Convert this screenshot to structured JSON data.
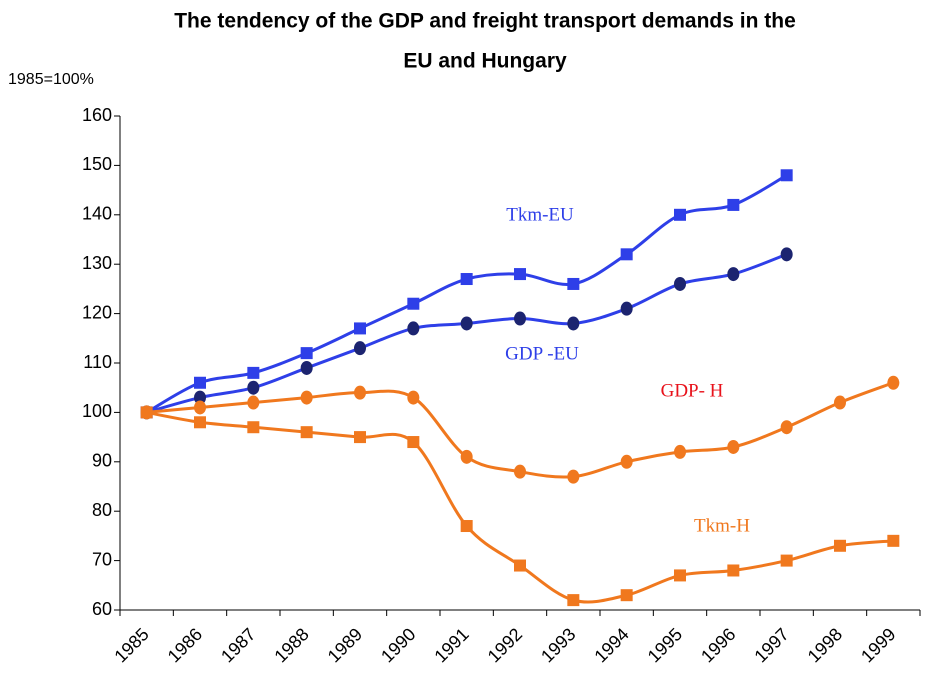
{
  "chart_data": {
    "type": "line",
    "title": [
      "The tendency of the GDP and freight transport demands in the",
      "EU and Hungary"
    ],
    "y_label": "1985=100%",
    "categories": [
      "1985",
      "1986",
      "1987",
      "1988",
      "1989",
      "1990",
      "1991",
      "1992",
      "1993",
      "1994",
      "1995",
      "1996",
      "1997",
      "1998",
      "1999"
    ],
    "ylim": [
      60,
      160
    ],
    "yticks": [
      60,
      70,
      80,
      90,
      100,
      110,
      120,
      130,
      140,
      150,
      160
    ],
    "grid": false,
    "series": [
      {
        "name": "Tkm-EU",
        "color": "#2e3fe8",
        "marker": "square",
        "marker_color": "#2e3fe8",
        "label_color": "#2e3fe8",
        "values": [
          100,
          106,
          108,
          112,
          117,
          122,
          127,
          128,
          126,
          132,
          140,
          142,
          148,
          null,
          null
        ]
      },
      {
        "name": "GDP -EU",
        "color": "#2e3fe8",
        "marker": "circle",
        "marker_color": "#1c2470",
        "label_color": "#2e3fe8",
        "values": [
          100,
          103,
          105,
          109,
          113,
          117,
          118,
          119,
          118,
          121,
          126,
          128,
          132,
          null,
          null
        ]
      },
      {
        "name": "GDP- H",
        "color": "#f0781e",
        "marker": "circle",
        "marker_color": "#f0781e",
        "label_color": "#e8121b",
        "values": [
          100,
          101,
          102,
          103,
          104,
          103,
          91,
          88,
          87,
          90,
          92,
          93,
          97,
          102,
          106
        ]
      },
      {
        "name": "Tkm-H",
        "color": "#f0781e",
        "marker": "square",
        "marker_color": "#f0781e",
        "label_color": "#f0781e",
        "values": [
          100,
          98,
          97,
          96,
          95,
          94,
          77,
          69,
          62,
          63,
          67,
          68,
          70,
          73,
          74
        ]
      }
    ]
  }
}
